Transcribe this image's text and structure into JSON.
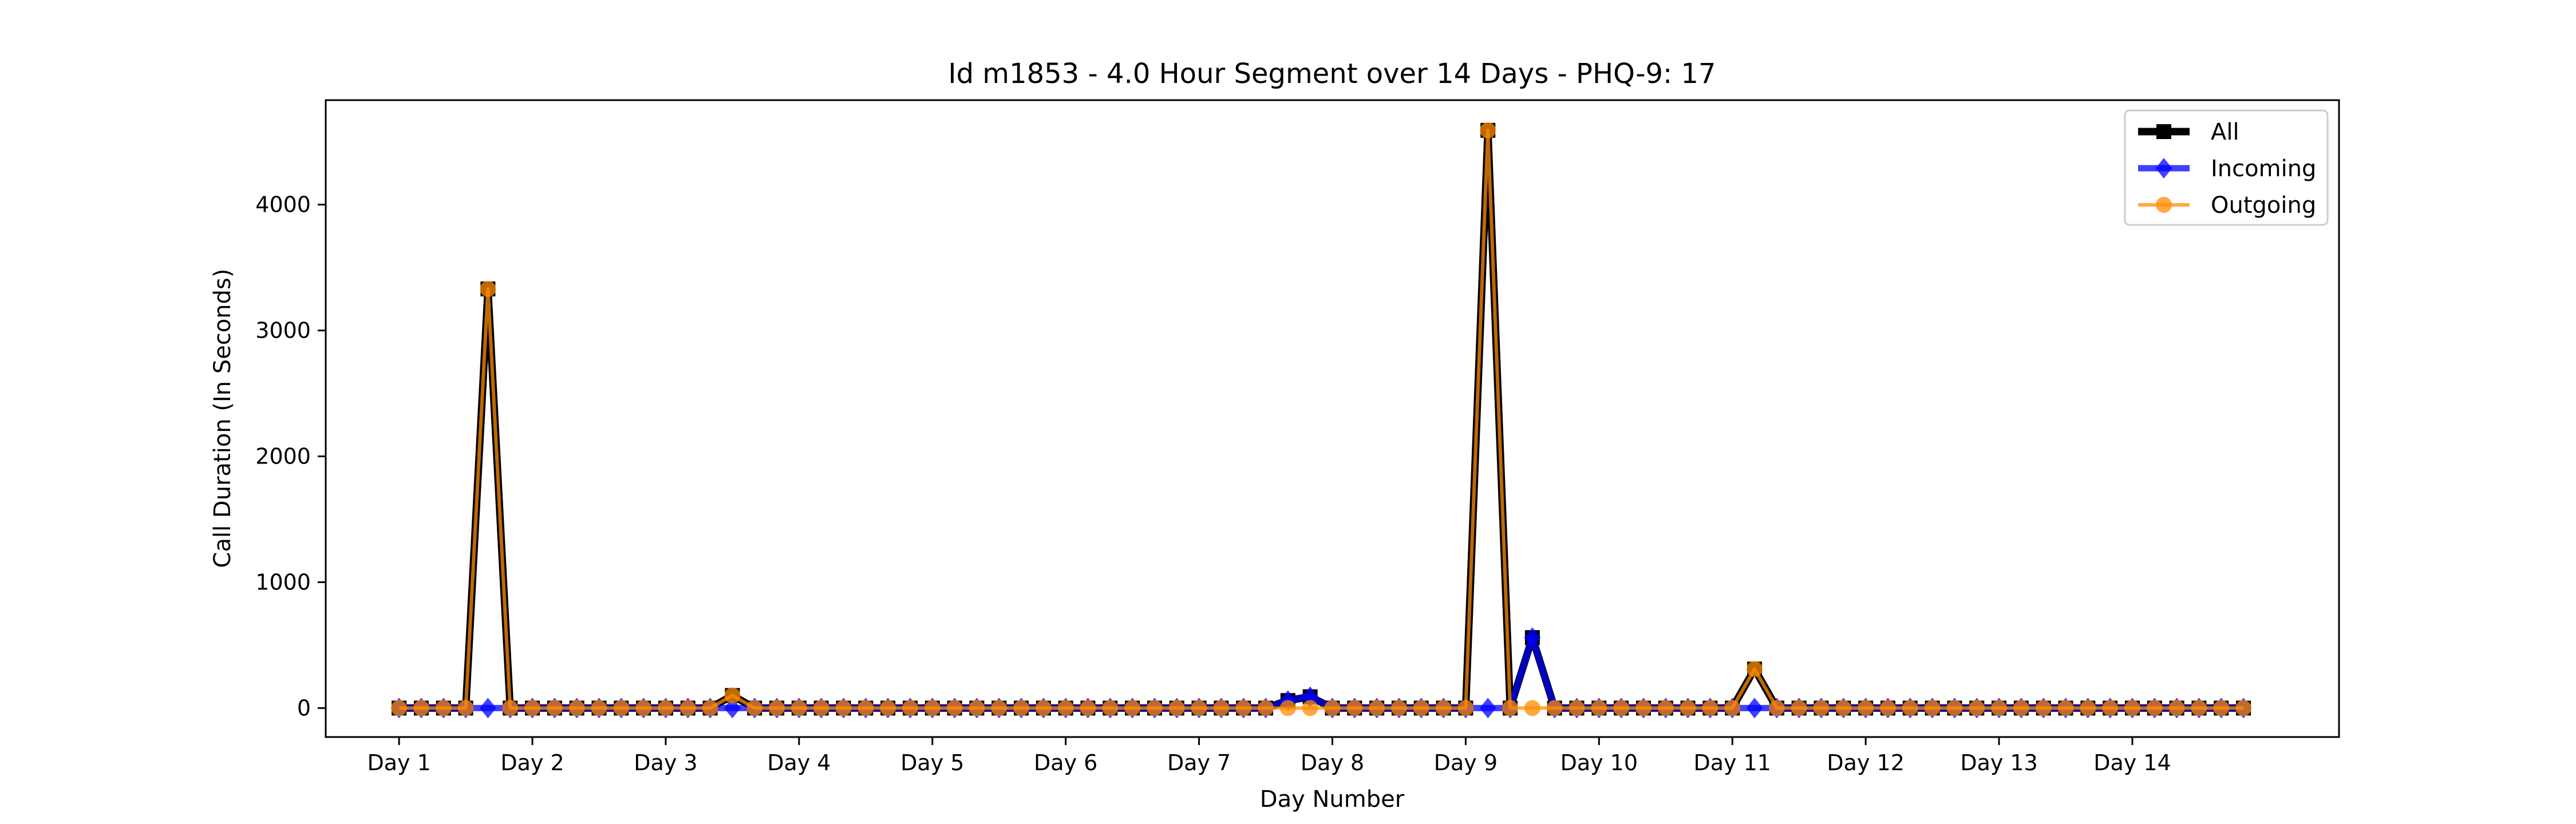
{
  "chart_data": {
    "type": "line",
    "title": "Id m1853 - 4.0 Hour Segment over 14 Days - PHQ-9: 17",
    "xlabel": "Day Number",
    "ylabel": "Call Duration (In Seconds)",
    "x_tick_labels": [
      "Day 1",
      "Day 2",
      "Day 3",
      "Day 4",
      "Day 5",
      "Day 6",
      "Day 7",
      "Day 8",
      "Day 9",
      "Day 10",
      "Day 11",
      "Day 12",
      "Day 13",
      "Day 14"
    ],
    "y_ticks": [
      0,
      1000,
      2000,
      3000,
      4000
    ],
    "ylim": [
      -230,
      4830
    ],
    "xlim": [
      -3.3,
      87.3
    ],
    "grid": false,
    "legend_position": "top-right",
    "series": [
      {
        "name": "All",
        "color": "#000000",
        "marker": "square",
        "values": [
          0,
          0,
          0,
          0,
          3330,
          0,
          0,
          0,
          0,
          0,
          0,
          0,
          0,
          0,
          0,
          100,
          0,
          0,
          0,
          0,
          0,
          0,
          0,
          0,
          0,
          0,
          0,
          0,
          0,
          0,
          0,
          0,
          0,
          0,
          0,
          0,
          0,
          0,
          0,
          0,
          60,
          90,
          0,
          0,
          0,
          0,
          0,
          0,
          0,
          4590,
          0,
          560,
          0,
          0,
          0,
          0,
          0,
          0,
          0,
          0,
          0,
          310,
          0,
          0,
          0,
          0,
          0,
          0,
          0,
          0,
          0,
          0,
          0,
          0,
          0,
          0,
          0,
          0,
          0,
          0,
          0,
          0,
          0,
          0
        ]
      },
      {
        "name": "Incoming",
        "color": "#0000ff",
        "marker": "diamond",
        "values": [
          0,
          0,
          0,
          0,
          0,
          0,
          0,
          0,
          0,
          0,
          0,
          0,
          0,
          0,
          0,
          0,
          0,
          0,
          0,
          0,
          0,
          0,
          0,
          0,
          0,
          0,
          0,
          0,
          0,
          0,
          0,
          0,
          0,
          0,
          0,
          0,
          0,
          0,
          0,
          0,
          60,
          90,
          0,
          0,
          0,
          0,
          0,
          0,
          0,
          0,
          0,
          560,
          0,
          0,
          0,
          0,
          0,
          0,
          0,
          0,
          0,
          0,
          0,
          0,
          0,
          0,
          0,
          0,
          0,
          0,
          0,
          0,
          0,
          0,
          0,
          0,
          0,
          0,
          0,
          0,
          0,
          0,
          0,
          0
        ]
      },
      {
        "name": "Outgoing",
        "color": "#ff8c00",
        "marker": "circle",
        "values": [
          0,
          0,
          0,
          0,
          3330,
          0,
          0,
          0,
          0,
          0,
          0,
          0,
          0,
          0,
          0,
          100,
          0,
          0,
          0,
          0,
          0,
          0,
          0,
          0,
          0,
          0,
          0,
          0,
          0,
          0,
          0,
          0,
          0,
          0,
          0,
          0,
          0,
          0,
          0,
          0,
          0,
          0,
          0,
          0,
          0,
          0,
          0,
          0,
          0,
          4590,
          0,
          0,
          0,
          0,
          0,
          0,
          0,
          0,
          0,
          0,
          0,
          310,
          0,
          0,
          0,
          0,
          0,
          0,
          0,
          0,
          0,
          0,
          0,
          0,
          0,
          0,
          0,
          0,
          0,
          0,
          0,
          0,
          0,
          0
        ]
      }
    ]
  }
}
